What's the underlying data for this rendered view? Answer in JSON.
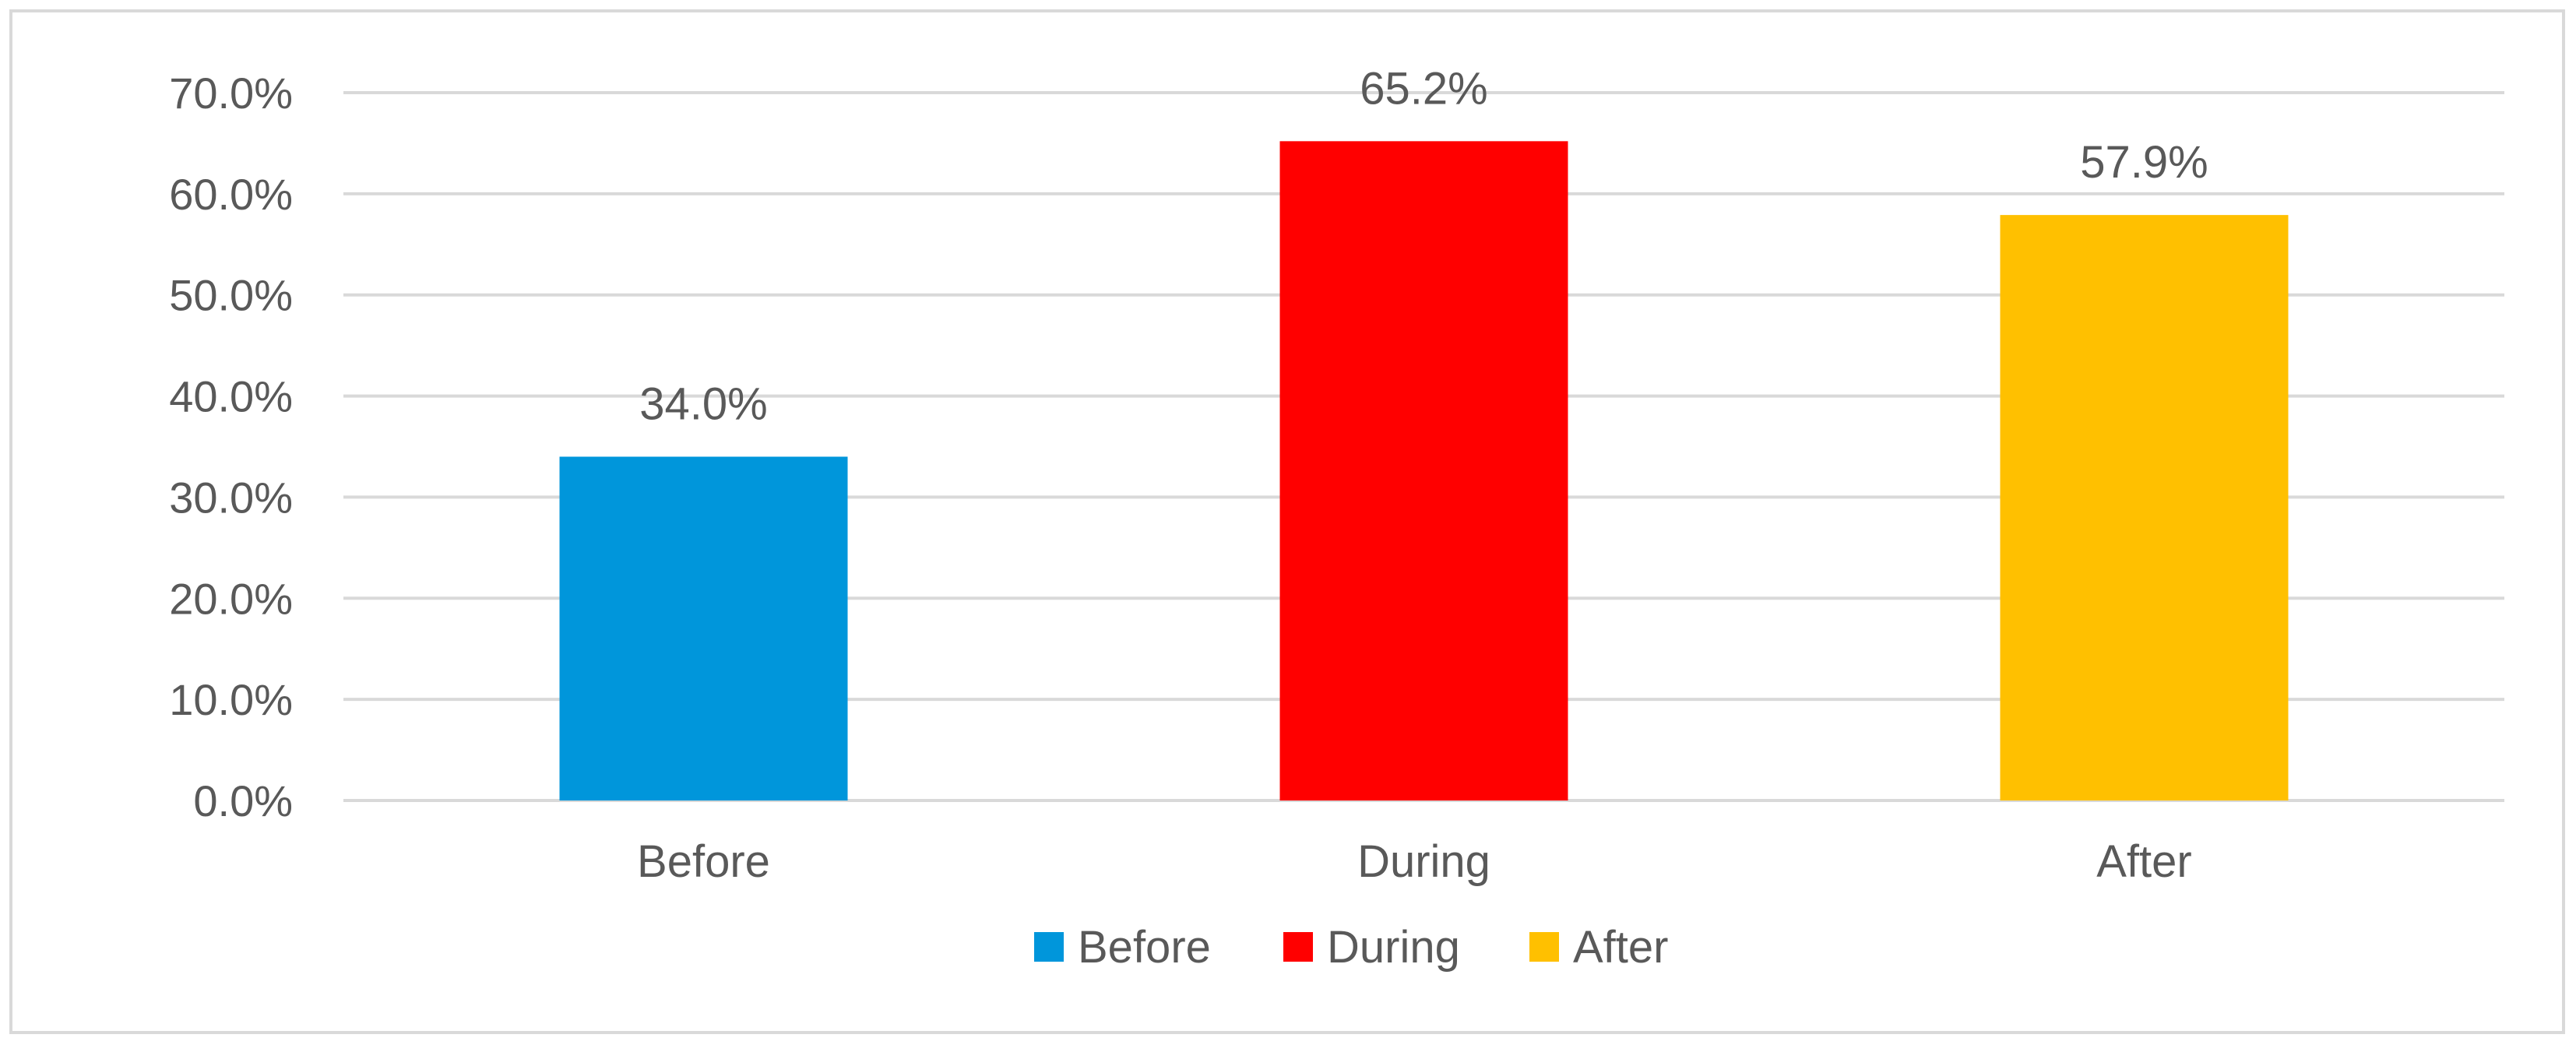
{
  "chart_data": {
    "type": "bar",
    "categories": [
      "Before",
      "During",
      "After"
    ],
    "values": [
      34.0,
      65.2,
      57.9
    ],
    "data_labels": [
      "34.0%",
      "65.2%",
      "57.9%"
    ],
    "colors": [
      "#0096DB",
      "#FF0000",
      "#FFC000"
    ],
    "ylim": [
      0,
      70
    ],
    "yticks": [
      0,
      10,
      20,
      30,
      40,
      50,
      60,
      70
    ],
    "ytick_labels": [
      "0.0%",
      "10.0%",
      "20.0%",
      "30.0%",
      "40.0%",
      "50.0%",
      "60.0%",
      "70.0%"
    ],
    "grid": true,
    "legend": {
      "placement": "bottom",
      "entries": [
        "Before",
        "During",
        "After"
      ]
    }
  }
}
